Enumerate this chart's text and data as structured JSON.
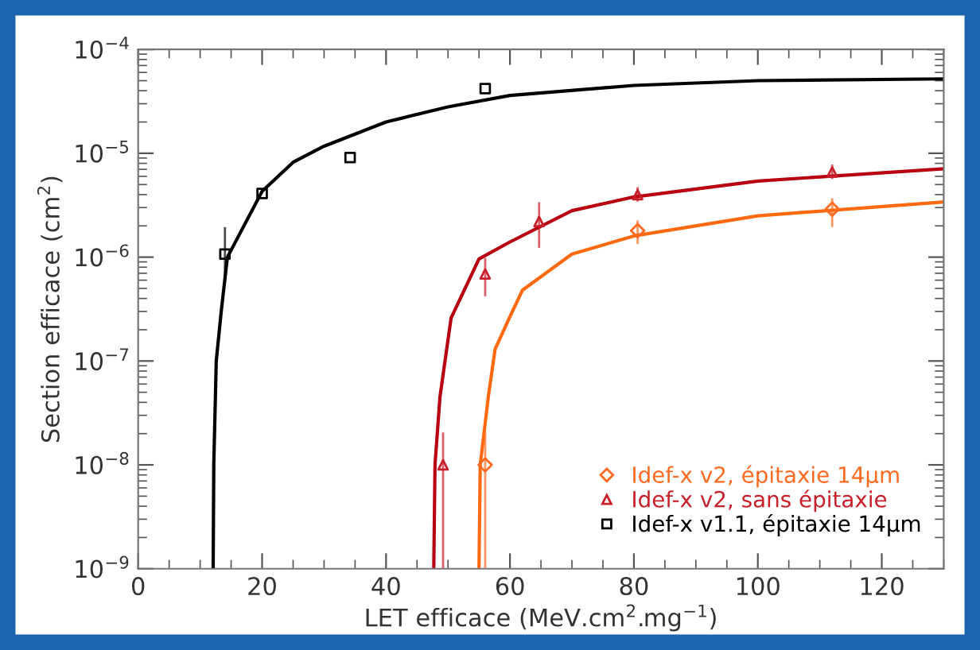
{
  "chart_data": {
    "type": "scatter",
    "xlabel": "LET efficace (MeV.cm$^{2}$.mg$^{−1}$)",
    "ylabel": "Section efficace (cm$^{2}$)",
    "log": "y",
    "xlim": [
      0,
      130
    ],
    "xticks": [
      0,
      20,
      40,
      60,
      80,
      100,
      120
    ],
    "ylim": [
      1e-09,
      0.0001
    ],
    "yticks": [
      {
        "value": 1e-09,
        "label": "10$^{−9}$"
      },
      {
        "value": 1e-08,
        "label": "10$^{−8}$"
      },
      {
        "value": 1e-07,
        "label": "10$^{−7}$"
      },
      {
        "value": 1e-06,
        "label": "10$^{−6}$"
      },
      {
        "value": 1e-05,
        "label": "10$^{−5}$"
      },
      {
        "value": 0.0001,
        "label": "10$^{−4}$"
      }
    ],
    "grid": false,
    "legend": "bottom right",
    "series": [
      {
        "name": "Idef-x v2, épitaxie 14μm",
        "marker": "diamond",
        "color": "#ff6a20",
        "x": [
          56.0,
          80.6,
          112
        ],
        "values": [
          1e-08,
          1.8e-06,
          2.9e-06
        ],
        "errors": [
          [
            1e-09,
            2e-08
          ],
          [
            1.37e-06,
            2.2e-06
          ],
          [
            2e-06,
            3.6e-06
          ]
        ]
      },
      {
        "name": "Idef-x v2, sans épitaxie",
        "marker": "triangle",
        "color": "#c8202a",
        "x": [
          49.2,
          56.0,
          64.7,
          80.6,
          112
        ],
        "values": [
          1e-08,
          6.9e-07,
          2.2e-06,
          4e-06,
          6.6e-06
        ],
        "errors": [
          [
            1e-09,
            2e-08
          ],
          [
            4.3e-07,
            9.6e-07
          ],
          [
            1.26e-06,
            3.3e-06
          ],
          [
            3.5e-06,
            4.6e-06
          ],
          [
            5.8e-06,
            7.6e-06
          ]
        ]
      },
      {
        "name": "Idef-x v1.1, épitaxie 14μm",
        "marker": "square",
        "color": "#000000",
        "x": [
          14,
          20,
          34.2,
          56
        ],
        "values": [
          1.07e-06,
          4.1e-06,
          9.1e-06,
          4.2e-05
        ],
        "errors": [
          [
            6.8e-07,
            1.9e-06
          ],
          null,
          null,
          null
        ]
      },
      {
        "type": "line",
        "color": "#ff6a10",
        "x": [
          55.0,
          55.2,
          56.5,
          57.6,
          59.9,
          62,
          70,
          80,
          100,
          130
        ],
        "values": [
          1e-09,
          1e-08,
          4.5e-08,
          1.3e-07,
          2.6e-07,
          4.8e-07,
          1.07e-06,
          1.6e-06,
          2.5e-06,
          3.4e-06
        ]
      },
      {
        "type": "line",
        "color": "#b80010",
        "x": [
          47.7,
          47.9,
          48.7,
          50.5,
          55,
          60,
          70,
          80,
          100,
          130
        ],
        "values": [
          1e-09,
          1e-08,
          4.5e-08,
          2.6e-07,
          9.6e-07,
          1.4e-06,
          2.8e-06,
          3.8e-06,
          5.4e-06,
          7.1e-06
        ]
      },
      {
        "type": "line",
        "color": "#000000",
        "x": [
          12.1,
          12.2,
          12.6,
          13.4,
          14.4,
          20,
          25,
          30,
          40,
          50,
          60,
          80,
          100,
          130
        ],
        "values": [
          1e-09,
          1e-08,
          1e-07,
          3e-07,
          1e-06,
          4.3e-06,
          8.2e-06,
          1.17e-05,
          2e-05,
          2.8e-05,
          3.6e-05,
          4.5e-05,
          5e-05,
          5.2e-05
        ]
      }
    ]
  }
}
